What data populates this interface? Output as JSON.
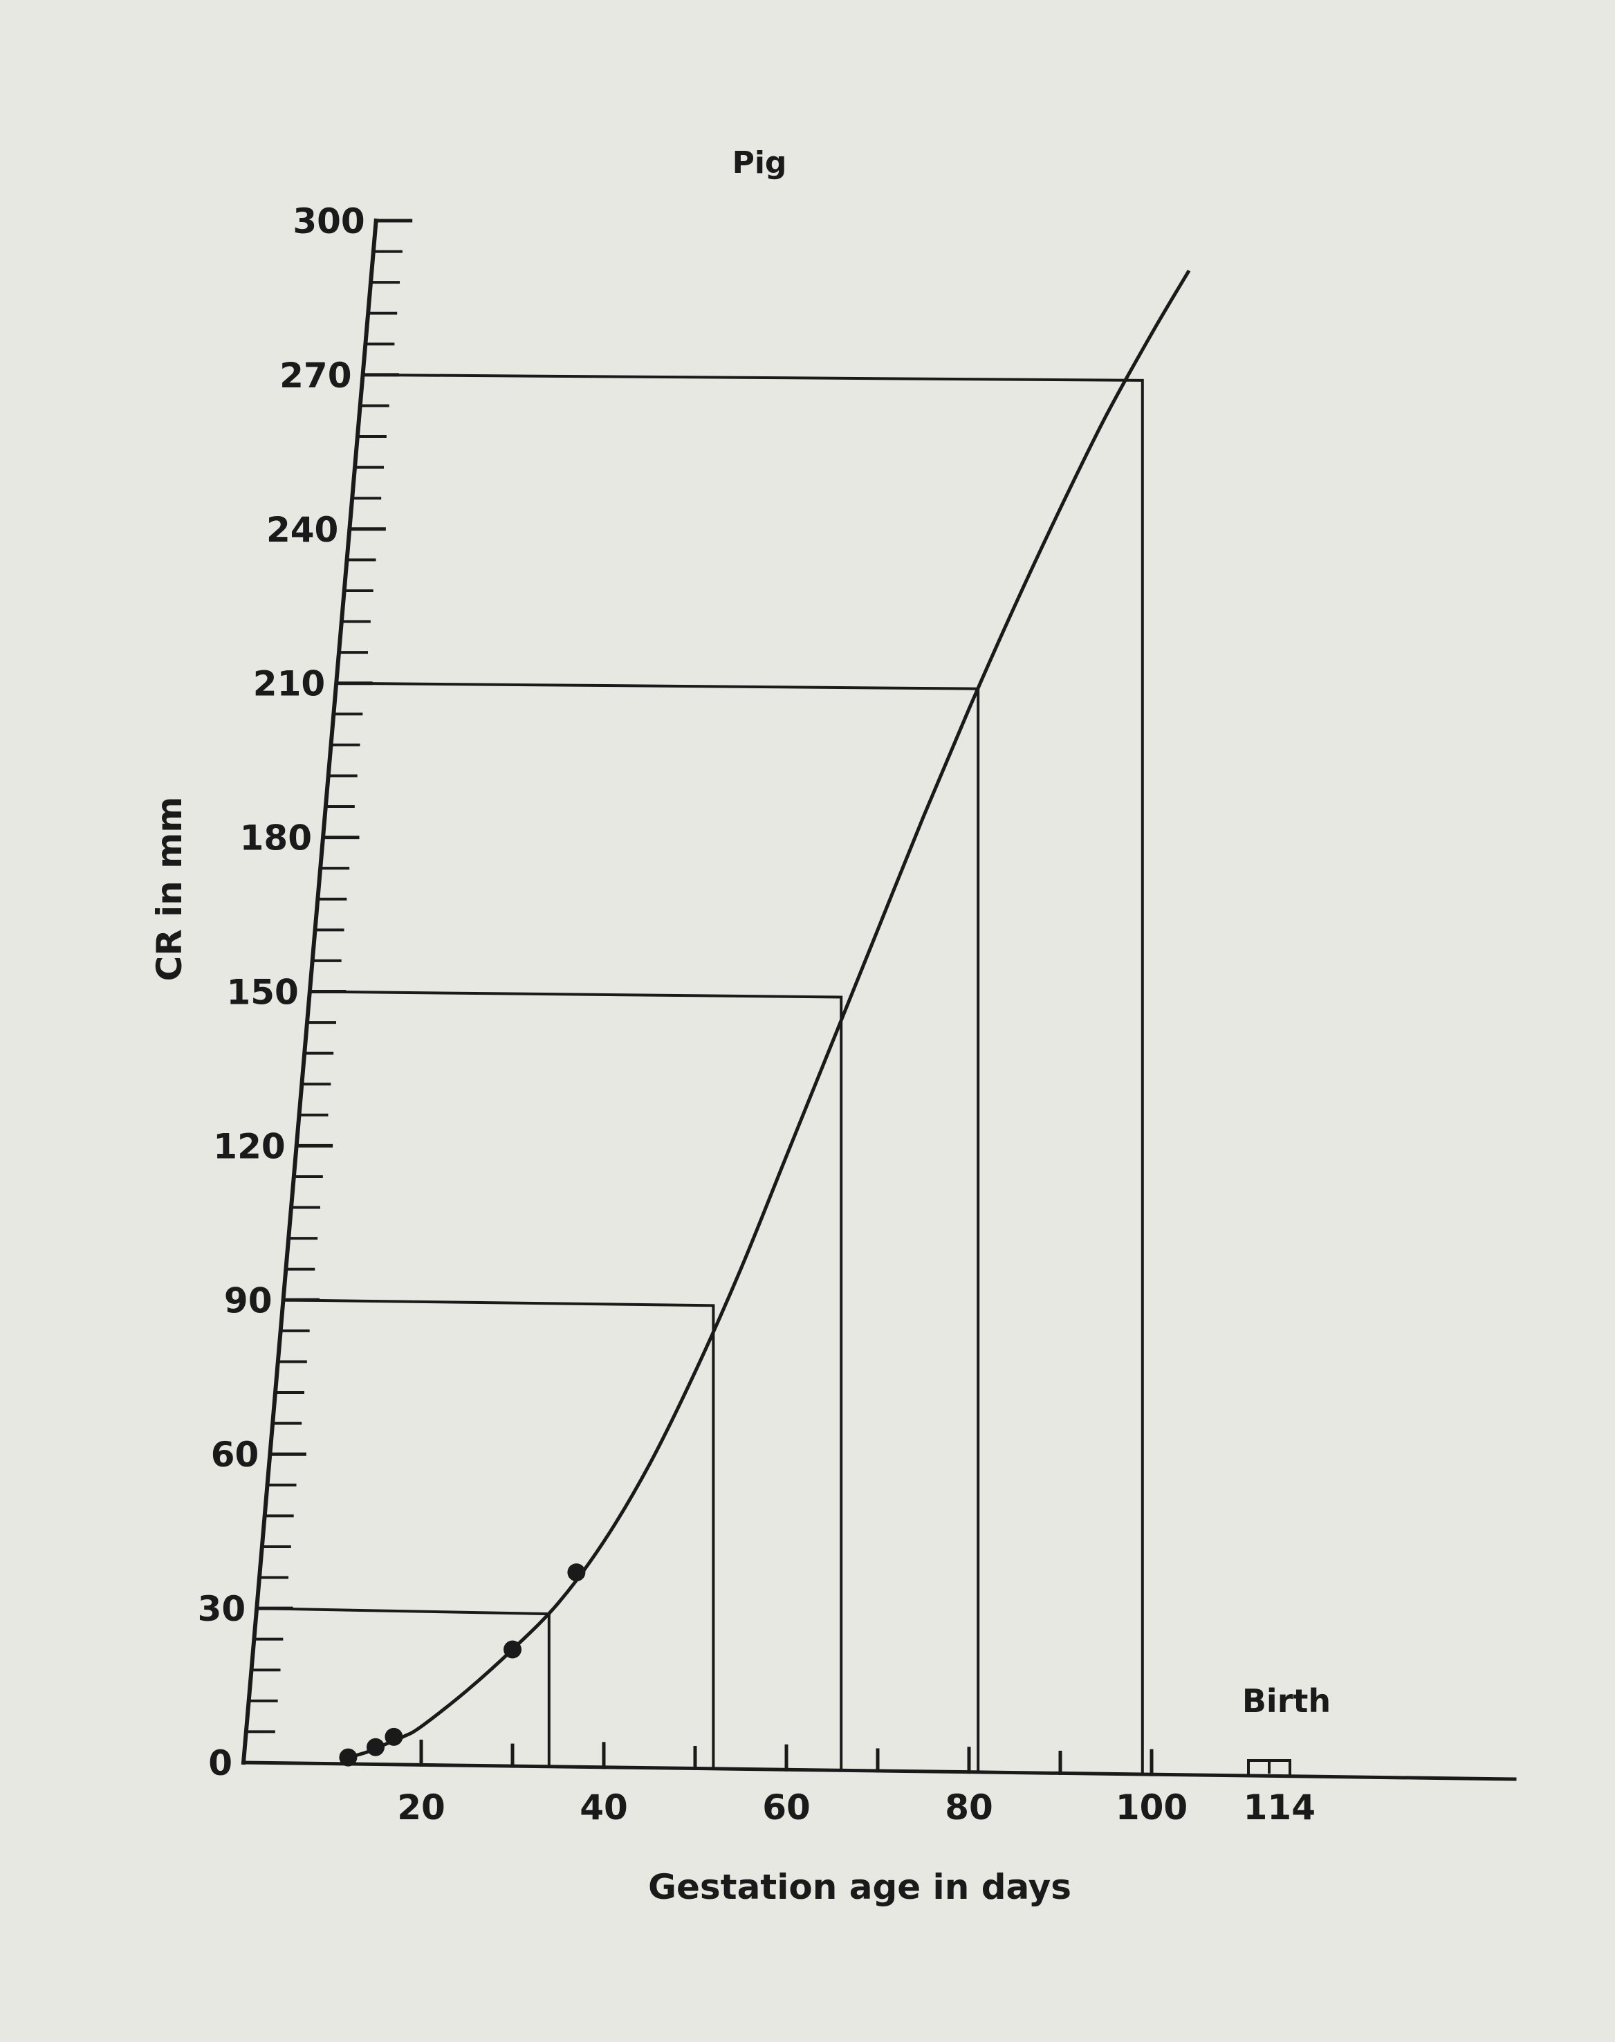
{
  "chart_data": {
    "type": "line",
    "title": "Pig",
    "xlabel": "Gestation age in days",
    "ylabel": "CR in mm",
    "xlim": [
      0,
      130
    ],
    "ylim": [
      0,
      300
    ],
    "x_ticks": [
      20,
      40,
      60,
      80,
      100,
      114
    ],
    "y_ticks": [
      0,
      30,
      60,
      90,
      120,
      150,
      180,
      210,
      240,
      270,
      300
    ],
    "grid": false,
    "series": [
      {
        "x": [
          12,
          14,
          16,
          18,
          20,
          25,
          30,
          35,
          40,
          45,
          50,
          55,
          60,
          65,
          70,
          75,
          80,
          85,
          90,
          95,
          100,
          104
        ],
        "values": [
          1,
          2,
          3.5,
          5,
          7,
          14,
          22,
          31,
          43,
          58,
          76,
          96,
          118,
          140,
          162,
          184,
          205,
          225,
          244,
          262,
          278,
          290
        ]
      }
    ],
    "data_points": {
      "x": [
        12,
        15,
        17,
        30,
        37
      ],
      "values": [
        1,
        3,
        5,
        22,
        37
      ]
    },
    "reference_lines": [
      {
        "x": 34,
        "y": 30
      },
      {
        "x": 52,
        "y": 90
      },
      {
        "x": 66,
        "y": 150
      },
      {
        "x": 81,
        "y": 210
      },
      {
        "x": 99,
        "y": 270
      }
    ],
    "annotations": [
      {
        "text": "Birth",
        "x": 114
      }
    ]
  }
}
